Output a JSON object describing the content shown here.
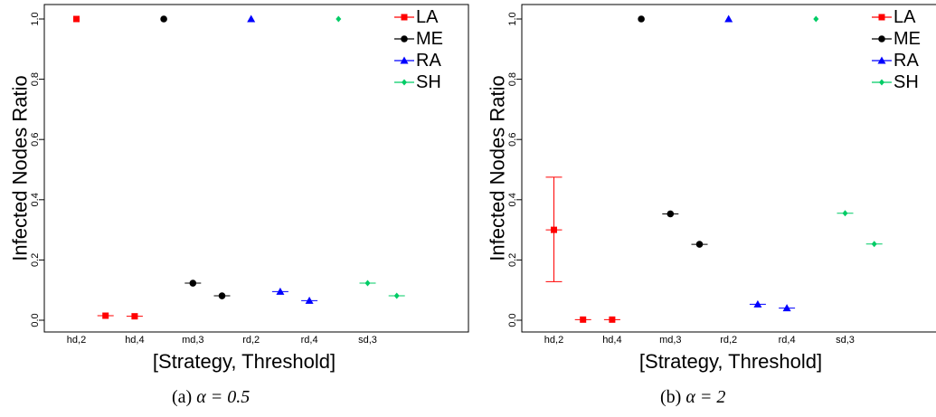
{
  "captions": [
    {
      "label": "(a)",
      "math": "α = 0.5"
    },
    {
      "label": "(b)",
      "math": "α = 2"
    }
  ],
  "colors": {
    "LA": "#ff0000",
    "ME": "#000000",
    "RA": "#0000ff",
    "SH": "#00cc66"
  },
  "chart_data": [
    {
      "type": "scatter",
      "title": "",
      "xlabel": "[Strategy, Threshold]",
      "ylabel": "Infected Nodes Ratio",
      "ylim": [
        0,
        1
      ],
      "yticks": [
        "0.0",
        "0.2",
        "0.4",
        "0.6",
        "0.8",
        "1.0"
      ],
      "x_tick_labels": [
        "hd,2",
        "hd,4",
        "md,3",
        "rd,2",
        "rd,4",
        "sd,3"
      ],
      "legend": {
        "position": "top-right",
        "entries": [
          "LA",
          "ME",
          "RA",
          "SH"
        ]
      },
      "series": [
        {
          "name": "LA",
          "marker": "square",
          "points": [
            {
              "x": 1,
              "y": 1.0
            },
            {
              "x": 2,
              "y": 0.015
            },
            {
              "x": 3,
              "y": 0.013
            }
          ]
        },
        {
          "name": "ME",
          "marker": "circle",
          "points": [
            {
              "x": 4,
              "y": 1.0
            },
            {
              "x": 5,
              "y": 0.123
            },
            {
              "x": 6,
              "y": 0.081
            }
          ]
        },
        {
          "name": "RA",
          "marker": "triangle",
          "points": [
            {
              "x": 7,
              "y": 1.0
            },
            {
              "x": 8,
              "y": 0.095
            },
            {
              "x": 9,
              "y": 0.065
            }
          ]
        },
        {
          "name": "SH",
          "marker": "diamond",
          "points": [
            {
              "x": 10,
              "y": 1.0
            },
            {
              "x": 11,
              "y": 0.123
            },
            {
              "x": 12,
              "y": 0.081
            }
          ]
        }
      ]
    },
    {
      "type": "scatter",
      "title": "",
      "xlabel": "[Strategy, Threshold]",
      "ylabel": "Infected Nodes Ratio",
      "ylim": [
        0,
        1
      ],
      "yticks": [
        "0.0",
        "0.2",
        "0.4",
        "0.6",
        "0.8",
        "1.0"
      ],
      "x_tick_labels": [
        "hd,2",
        "hd,4",
        "md,3",
        "rd,2",
        "rd,4",
        "sd,3"
      ],
      "legend": {
        "position": "top-right",
        "entries": [
          "LA",
          "ME",
          "RA",
          "SH"
        ]
      },
      "series": [
        {
          "name": "LA",
          "marker": "square",
          "points": [
            {
              "x": 1,
              "y": 0.3,
              "ylo": 0.128,
              "yhi": 0.475
            },
            {
              "x": 2,
              "y": 0.002
            },
            {
              "x": 3,
              "y": 0.002
            }
          ]
        },
        {
          "name": "ME",
          "marker": "circle",
          "points": [
            {
              "x": 4,
              "y": 1.0
            },
            {
              "x": 5,
              "y": 0.353
            },
            {
              "x": 6,
              "y": 0.252
            }
          ]
        },
        {
          "name": "RA",
          "marker": "triangle",
          "points": [
            {
              "x": 7,
              "y": 1.0
            },
            {
              "x": 8,
              "y": 0.053
            },
            {
              "x": 9,
              "y": 0.04
            }
          ]
        },
        {
          "name": "SH",
          "marker": "diamond",
          "points": [
            {
              "x": 10,
              "y": 1.0
            },
            {
              "x": 11,
              "y": 0.355
            },
            {
              "x": 12,
              "y": 0.253
            }
          ]
        }
      ]
    }
  ]
}
